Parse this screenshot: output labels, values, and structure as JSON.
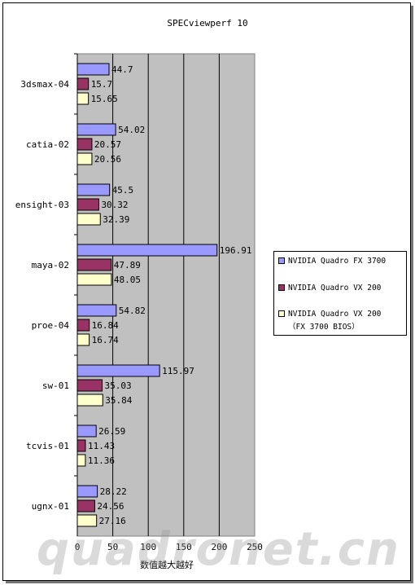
{
  "chart_data": {
    "type": "bar",
    "orientation": "horizontal",
    "title": "SPECviewperf 10",
    "xlabel": "数值越大越好",
    "xlim": [
      0,
      250
    ],
    "xticks": [
      "0",
      "50",
      "100",
      "150",
      "200",
      "250"
    ],
    "grid": true,
    "legend_position": "right",
    "categories": [
      "3dsmax-04",
      "catia-02",
      "ensight-03",
      "maya-02",
      "proe-04",
      "sw-01",
      "tcvis-01",
      "ugnx-01"
    ],
    "series": [
      {
        "name": "NVIDIA Quadro FX 3700",
        "color": "#9999ff",
        "values": [
          44.7,
          54.02,
          45.5,
          196.91,
          54.82,
          115.97,
          26.59,
          28.22
        ],
        "labels": [
          "44.7",
          "54.02",
          "45.5",
          "196.91",
          "54.82",
          "115.97",
          "26.59",
          "28.22"
        ]
      },
      {
        "name": "NVIDIA Quadro VX 200",
        "color": "#993366",
        "values": [
          15.7,
          20.57,
          30.32,
          47.89,
          16.84,
          35.03,
          11.43,
          24.56
        ],
        "labels": [
          "15.7",
          "20.57",
          "30.32",
          "47.89",
          "16.84",
          "35.03",
          "11.43",
          "24.56"
        ]
      },
      {
        "name": "NVIDIA Quadro VX 200\n（FX 3700 BIOS）",
        "color": "#ffffcc",
        "values": [
          15.65,
          20.56,
          32.39,
          48.05,
          16.74,
          35.84,
          11.36,
          27.16
        ],
        "labels": [
          "15.65",
          "20.56",
          "32.39",
          "48.05",
          "16.74",
          "35.84",
          "11.36",
          "27.16"
        ]
      }
    ],
    "legend": {
      "line1": "NVIDIA Quadro FX 3700",
      "line2": "NVIDIA Quadro VX 200",
      "line3a": "NVIDIA Quadro VX 200",
      "line3b": "（FX 3700 BIOS）"
    }
  },
  "watermark": "quadronet.cn"
}
